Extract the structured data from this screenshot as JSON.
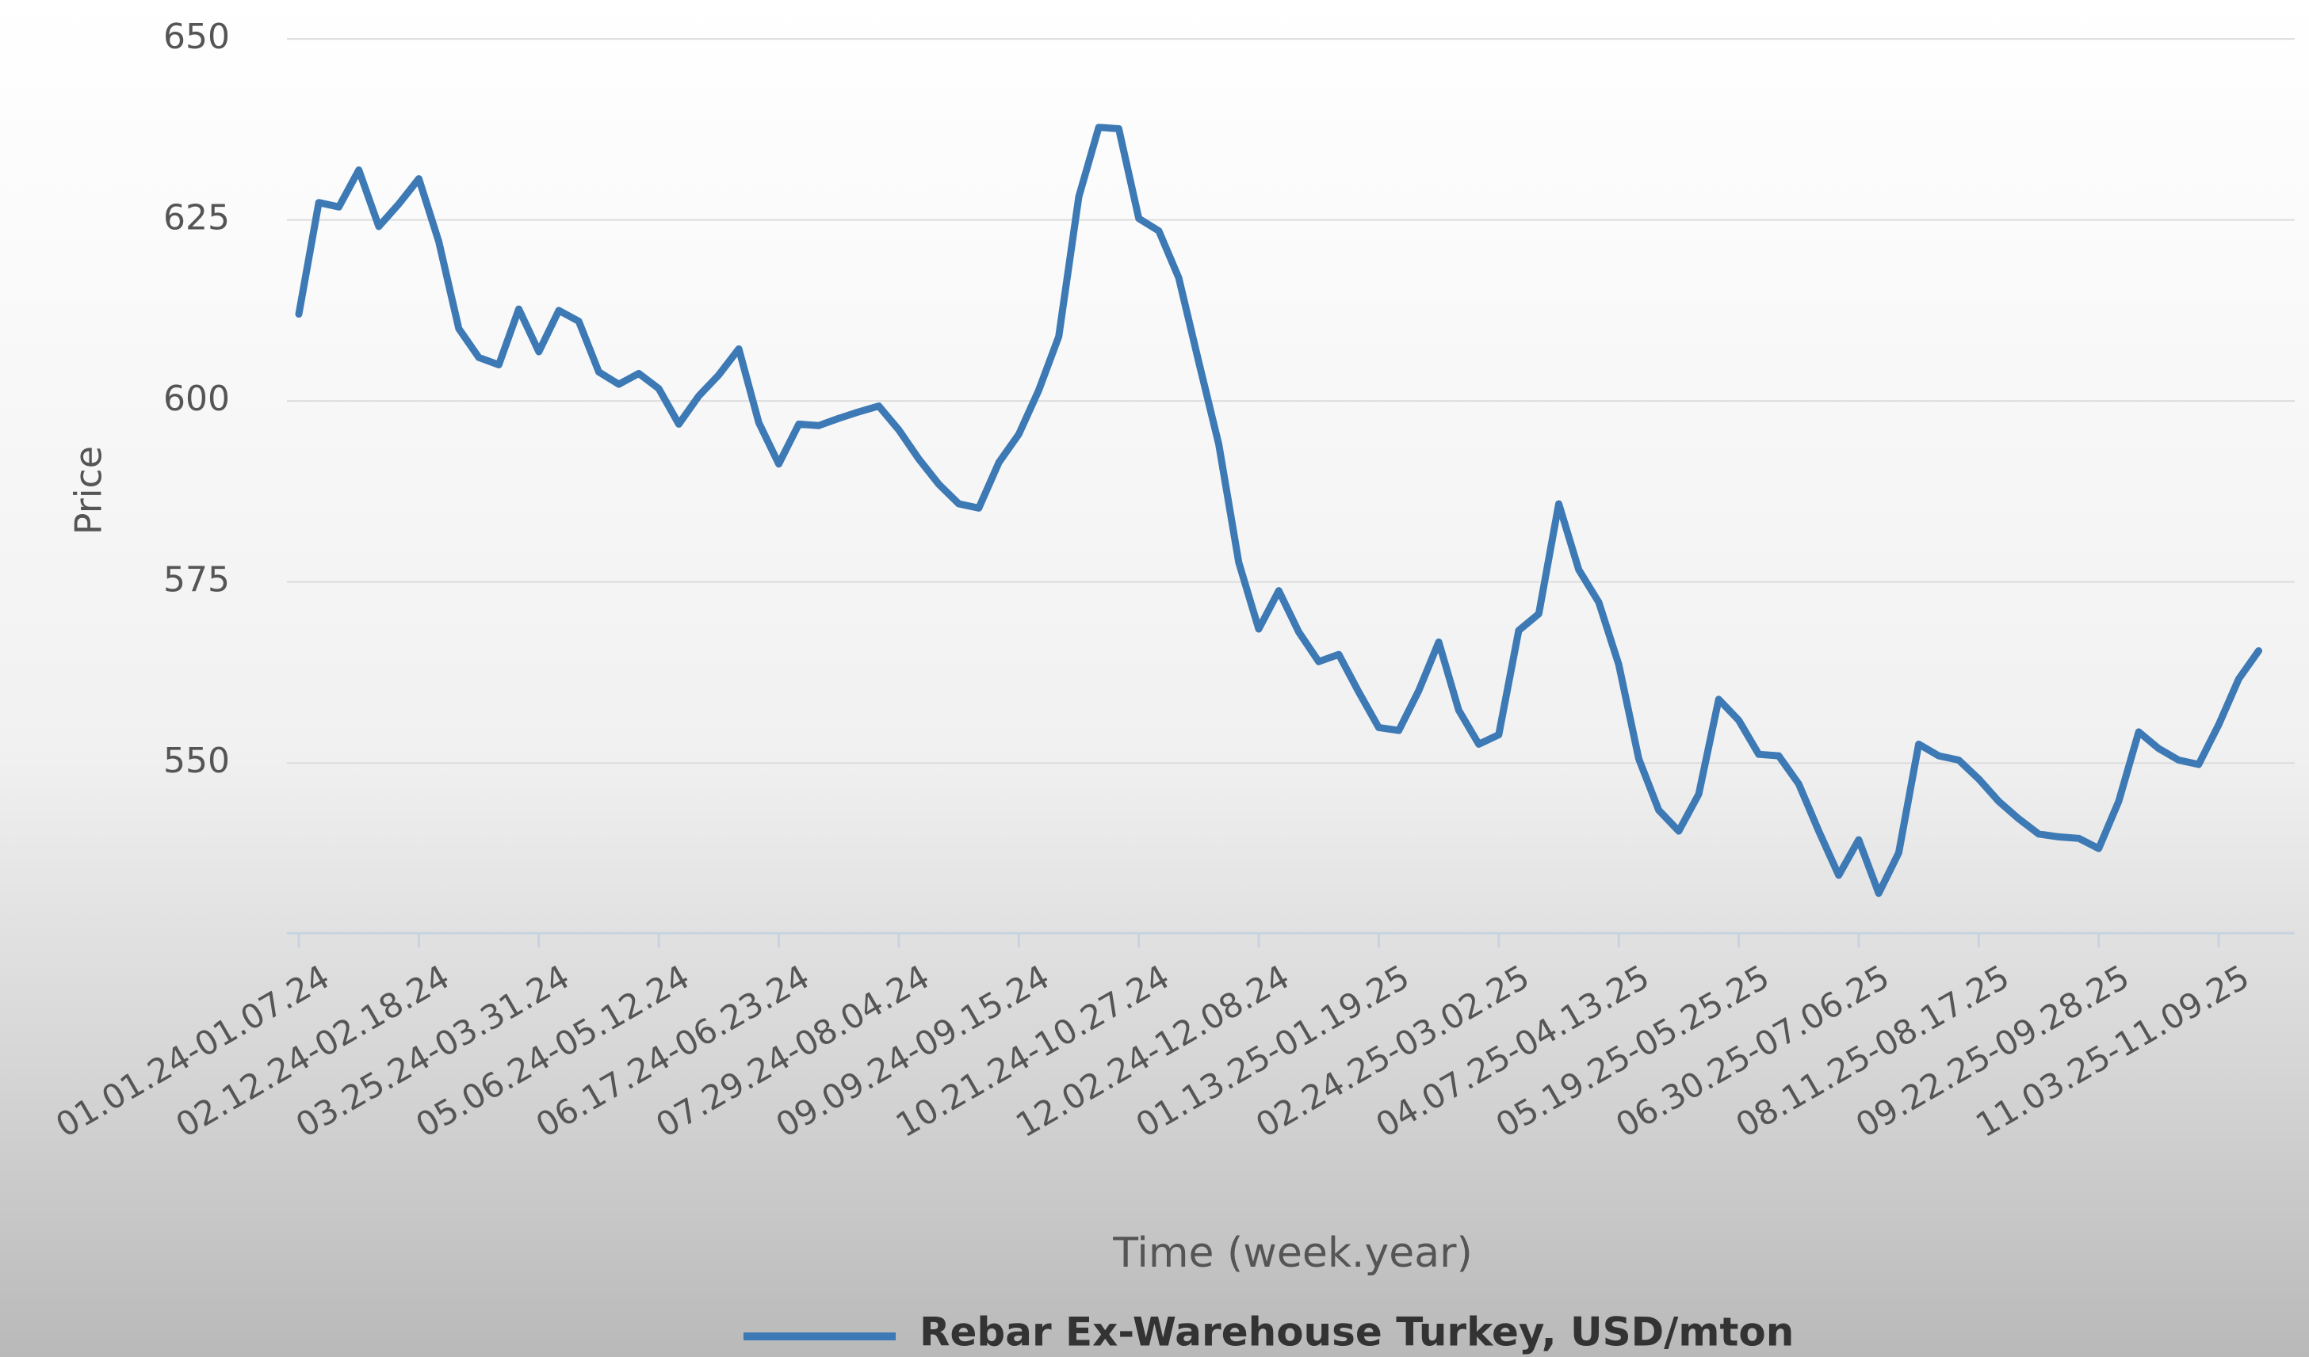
{
  "chart_data": {
    "type": "line",
    "x_label": "Time (week.year)",
    "y_label": "Price",
    "categories": [
      "01.01.24-01.07.24",
      null,
      null,
      null,
      null,
      null,
      "02.12.24-02.18.24",
      null,
      null,
      null,
      null,
      null,
      "03.25.24-03.31.24",
      null,
      null,
      null,
      null,
      null,
      "05.06.24-05.12.24",
      null,
      null,
      null,
      null,
      null,
      "06.17.24-06.23.24",
      null,
      null,
      null,
      null,
      null,
      "07.29.24-08.04.24",
      null,
      null,
      null,
      null,
      null,
      "09.09.24-09.15.24",
      null,
      null,
      null,
      null,
      null,
      "10.21.24-10.27.24",
      null,
      null,
      null,
      null,
      null,
      "12.02.24-12.08.24",
      null,
      null,
      null,
      null,
      null,
      "01.13.25-01.19.25",
      null,
      null,
      null,
      null,
      null,
      "02.24.25-03.02.25",
      null,
      null,
      null,
      null,
      null,
      "04.07.25-04.13.25",
      null,
      null,
      null,
      null,
      null,
      "05.19.25-05.25.25",
      null,
      null,
      null,
      null,
      null,
      "06.30.25-07.06.25",
      null,
      null,
      null,
      null,
      null,
      "08.11.25-08.17.25",
      null,
      null,
      null,
      null,
      null,
      "09.22.25-09.28.25",
      null,
      null,
      null,
      null,
      null,
      "11.03.25-11.09.25",
      null,
      null
    ],
    "series": [
      {
        "name": "Rebar Ex-Warehouse Turkey, USD/mton",
        "color": "#3d7ab5",
        "values": [
          612,
          627.4,
          626.8,
          631.9,
          624.1,
          627.2,
          630.7,
          622,
          610,
          606,
          605,
          612.7,
          606.8,
          612.5,
          611,
          604,
          602.3,
          603.8,
          601.7,
          596.8,
          600.7,
          603.6,
          607.2,
          597,
          591.3,
          596.8,
          596.6,
          597.6,
          598.5,
          599.3,
          596,
          592,
          588.5,
          585.8,
          585.2,
          591.5,
          595.4,
          601.5,
          608.9,
          628.2,
          637.8,
          637.6,
          625.2,
          623.5,
          617,
          605.4,
          594,
          577.7,
          568.5,
          573.8,
          568.1,
          564,
          565,
          559.8,
          554.9,
          554.5,
          560,
          566.7,
          557.3,
          552.6,
          553.9,
          568.3,
          570.6,
          585.8,
          576.7,
          572.2,
          563.6,
          550.6,
          543.5,
          540.6,
          545.7,
          558.8,
          555.9,
          551.2,
          551,
          547.1,
          540.6,
          534.5,
          539.4,
          532,
          537.6,
          552.6,
          551,
          550.4,
          547.8,
          544.7,
          542.3,
          540.2,
          539.8,
          539.6,
          538.2,
          544.7,
          554.3,
          552,
          550.4,
          549.8,
          555.3,
          561.6,
          565.5
        ]
      }
    ],
    "ylim": [
      526.5,
      651
    ],
    "yticks": [
      550,
      575,
      600,
      625,
      650
    ],
    "grid": true
  }
}
